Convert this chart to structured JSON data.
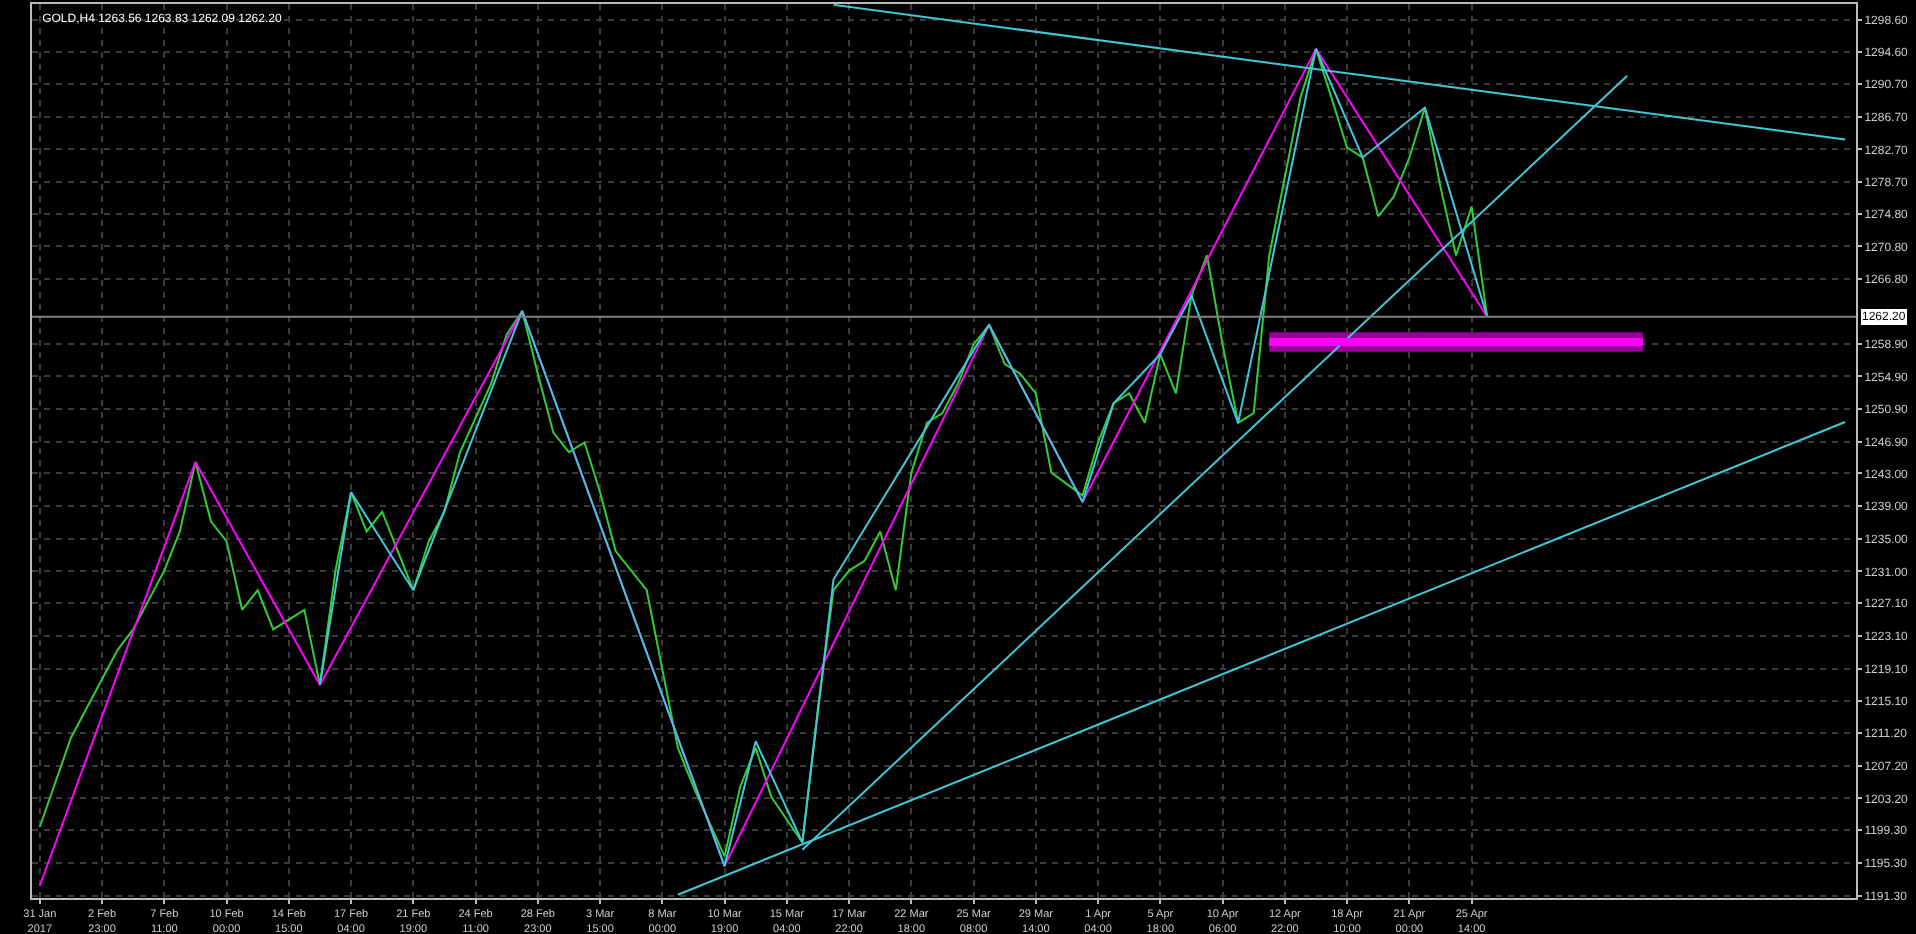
{
  "chart_data": {
    "type": "line",
    "title": "GOLD,H4 1263.56 1263.83 1262.09 1262.20",
    "categories": [
      "31 Jan 2017",
      null,
      null,
      null,
      "2 Feb 23:00",
      null,
      null,
      null,
      "7 Feb 11:00",
      null,
      null,
      null,
      "10 Feb 00:00",
      null,
      null,
      null,
      "14 Feb 15:00",
      null,
      null,
      null,
      "17 Feb 04:00",
      null,
      null,
      null,
      "21 Feb 19:00",
      null,
      null,
      null,
      "24 Feb 11:00",
      null,
      null,
      null,
      "28 Feb 23:00",
      null,
      null,
      null,
      "3 Mar 15:00",
      null,
      null,
      null,
      "8 Mar 00:00",
      null,
      null,
      null,
      "10 Mar 19:00",
      null,
      null,
      null,
      "15 Mar 04:00",
      null,
      null,
      null,
      "17 Mar 22:00",
      null,
      null,
      null,
      "22 Mar 18:00",
      null,
      null,
      null,
      "25 Mar 08:00",
      null,
      null,
      null,
      "29 Mar 14:00",
      null,
      null,
      null,
      "1 Apr 04:00",
      null,
      null,
      null,
      "5 Apr 18:00",
      null,
      null,
      null,
      "10 Apr 06:00",
      null,
      null,
      null,
      "12 Apr 22:00",
      null,
      null,
      null,
      "18 Apr 10:00",
      null,
      null,
      null,
      "21 Apr 00:00",
      null,
      null,
      null,
      "25 Apr 14:00",
      null,
      null,
      null,
      null,
      null,
      null,
      null,
      null,
      null,
      null,
      null,
      null,
      null,
      null,
      null,
      null,
      null,
      null,
      null,
      null,
      null,
      null,
      null,
      null
    ],
    "ylim": [
      1191.0,
      1300.5
    ],
    "yticks": [
      {
        "value": 1298.6,
        "label": "1298.60"
      },
      {
        "value": 1294.6,
        "label": "1294.60"
      },
      {
        "value": 1290.7,
        "label": "1290.70"
      },
      {
        "value": 1286.7,
        "label": "1286.70"
      },
      {
        "value": 1282.7,
        "label": "1282.70"
      },
      {
        "value": 1278.7,
        "label": "1278.70"
      },
      {
        "value": 1274.8,
        "label": "1274.80"
      },
      {
        "value": 1270.8,
        "label": "1270.80"
      },
      {
        "value": 1266.8,
        "label": "1266.80"
      },
      {
        "value": 1258.9,
        "label": "1258.90"
      },
      {
        "value": 1254.9,
        "label": "1254.90"
      },
      {
        "value": 1250.9,
        "label": "1250.90"
      },
      {
        "value": 1246.9,
        "label": "1246.90"
      },
      {
        "value": 1243.0,
        "label": "1243.00"
      },
      {
        "value": 1239.0,
        "label": "1239.00"
      },
      {
        "value": 1235.0,
        "label": "1235.00"
      },
      {
        "value": 1231.0,
        "label": "1231.00"
      },
      {
        "value": 1227.1,
        "label": "1227.10"
      },
      {
        "value": 1223.1,
        "label": "1223.10"
      },
      {
        "value": 1219.1,
        "label": "1219.10"
      },
      {
        "value": 1215.1,
        "label": "1215.10"
      },
      {
        "value": 1211.2,
        "label": "1211.20"
      },
      {
        "value": 1207.2,
        "label": "1207.20"
      },
      {
        "value": 1203.2,
        "label": "1203.20"
      },
      {
        "value": 1199.3,
        "label": "1199.30"
      },
      {
        "value": 1195.3,
        "label": "1195.30"
      },
      {
        "value": 1191.3,
        "label": "1191.30"
      }
    ],
    "grid": true,
    "marker": "none",
    "ref_lines": [
      {
        "axis": "y",
        "value": 1262.2,
        "label": "1262.20",
        "color": "#808080"
      }
    ],
    "series": [
      {
        "color": "#32cd32",
        "values": [
          1199.7,
          null,
          1210.6,
          1214.2,
          null,
          1221.4,
          1223.9,
          null,
          1231.1,
          1235.9,
          1244.4,
          1237.1,
          1234.7,
          1226.3,
          1228.7,
          1223.9,
          null,
          1226.3,
          1217.1,
          1231.1,
          1240.7,
          1235.9,
          1238.3,
          null,
          1228.7,
          1234.7,
          1238.3,
          1245.6,
          null,
          1254.0,
          1260.0,
          1262.9,
          1255.2,
          1248.0,
          1245.6,
          1246.8,
          1240.7,
          1233.5,
          null,
          1228.7,
          1219.0,
          1209.4,
          1204.6,
          null,
          1196.1,
          1204.6,
          1209.4,
          1203.4,
          null,
          1197.8,
          1214.2,
          1228.7,
          1231.1,
          1232.3,
          1235.9,
          1228.7,
          1243.1,
          1249.2,
          1250.4,
          1254.0,
          1258.8,
          1261.2,
          1256.4,
          1255.2,
          1252.8,
          1243.1,
          null,
          1240.3,
          1246.8,
          1251.6,
          1252.8,
          1249.2,
          1257.6,
          1252.8,
          1264.8,
          1269.7,
          1258.8,
          1249.2,
          1250.4,
          1269.7,
          1279.3,
          1289.0,
          1295.0,
          1289.0,
          1282.9,
          1281.7,
          1274.5,
          1276.9,
          1281.7,
          1287.8,
          1278.1,
          1269.7,
          1275.7,
          1262.2,
          null,
          null,
          null,
          null,
          null,
          null,
          null,
          null,
          null,
          null,
          null,
          null,
          null,
          null,
          null,
          null,
          null,
          null,
          null,
          null,
          null,
          null,
          null
        ]
      },
      {
        "color": "#ff00ff",
        "values": [
          1192.5,
          null,
          null,
          null,
          null,
          null,
          null,
          null,
          null,
          null,
          1244.4,
          null,
          null,
          null,
          null,
          null,
          null,
          null,
          1217.1,
          null,
          null,
          null,
          null,
          null,
          null,
          null,
          null,
          null,
          null,
          null,
          null,
          1262.9,
          null,
          null,
          null,
          null,
          null,
          null,
          null,
          null,
          null,
          null,
          null,
          null,
          1194.9,
          null,
          null,
          null,
          null,
          null,
          null,
          null,
          null,
          null,
          null,
          null,
          null,
          null,
          null,
          null,
          null,
          1261.2,
          null,
          null,
          null,
          null,
          null,
          1239.5,
          null,
          null,
          null,
          null,
          null,
          null,
          null,
          null,
          null,
          null,
          null,
          null,
          null,
          null,
          1295.0,
          null,
          null,
          null,
          null,
          null,
          null,
          null,
          null,
          null,
          null,
          1262.2,
          null,
          null,
          null,
          null,
          null,
          null,
          null,
          null,
          null,
          null,
          null,
          null,
          null,
          null,
          null,
          null,
          null,
          null,
          null,
          null,
          null,
          null,
          null
        ]
      },
      {
        "color": "#40c8d8",
        "values": [
          null,
          null,
          null,
          null,
          null,
          null,
          null,
          null,
          null,
          null,
          null,
          null,
          null,
          null,
          null,
          null,
          null,
          null,
          1217.1,
          null,
          1240.7,
          null,
          null,
          null,
          1228.7,
          null,
          null,
          null,
          null,
          null,
          null,
          1262.9,
          null,
          null,
          null,
          null,
          null,
          null,
          null,
          null,
          null,
          null,
          null,
          null,
          1194.9,
          null,
          1210.2,
          null,
          null,
          1197.8,
          null,
          1230.0,
          null,
          null,
          null,
          null,
          null,
          null,
          null,
          null,
          null,
          1261.2,
          null,
          null,
          null,
          null,
          null,
          1239.5,
          null,
          1251.6,
          null,
          null,
          1257.6,
          null,
          1264.8,
          null,
          null,
          1249.2,
          null,
          null,
          null,
          null,
          1295.0,
          null,
          null,
          1281.7,
          null,
          null,
          null,
          1287.8,
          null,
          null,
          null,
          1262.2,
          null,
          null,
          null,
          null,
          null,
          null,
          null,
          null,
          null,
          null,
          null,
          null,
          null,
          null,
          null,
          null,
          null,
          null,
          null,
          null,
          null,
          null,
          null
        ]
      },
      {
        "color": "#40c8d8",
        "values": [
          null,
          null,
          null,
          null,
          null,
          null,
          null,
          null,
          null,
          null,
          null,
          null,
          null,
          null,
          null,
          null,
          null,
          null,
          null,
          null,
          null,
          null,
          null,
          null,
          null,
          null,
          null,
          null,
          null,
          null,
          null,
          null,
          null,
          null,
          null,
          null,
          null,
          null,
          null,
          null,
          null,
          null,
          null,
          null,
          null,
          null,
          null,
          null,
          null,
          null,
          null,
          1300.4,
          null,
          null,
          null,
          null,
          null,
          null,
          null,
          null,
          null,
          null,
          null,
          null,
          null,
          null,
          null,
          null,
          null,
          null,
          null,
          null,
          null,
          null,
          null,
          null,
          null,
          null,
          null,
          null,
          null,
          null,
          null,
          null,
          null,
          null,
          null,
          null,
          null,
          null,
          null,
          null,
          null,
          null,
          null,
          null,
          null,
          null,
          null,
          null,
          null,
          null,
          null,
          null,
          null,
          null,
          null,
          null,
          null,
          null,
          null,
          null,
          null,
          null,
          null,
          null,
          1283.9
        ]
      },
      {
        "color": "#40c8d8",
        "values": [
          null,
          null,
          null,
          null,
          null,
          null,
          null,
          null,
          null,
          null,
          null,
          null,
          null,
          null,
          null,
          null,
          null,
          null,
          null,
          null,
          null,
          null,
          null,
          null,
          null,
          null,
          null,
          null,
          null,
          null,
          null,
          null,
          null,
          null,
          null,
          null,
          null,
          null,
          null,
          null,
          null,
          null,
          null,
          null,
          null,
          null,
          null,
          null,
          null,
          1196.9,
          null,
          null,
          null,
          null,
          null,
          null,
          null,
          null,
          null,
          null,
          null,
          null,
          null,
          null,
          null,
          null,
          null,
          null,
          null,
          null,
          null,
          null,
          null,
          null,
          null,
          null,
          null,
          null,
          null,
          null,
          null,
          null,
          null,
          null,
          null,
          null,
          null,
          null,
          null,
          null,
          null,
          null,
          null,
          null,
          null,
          null,
          null,
          null,
          null,
          null,
          null,
          null,
          1291.7,
          null,
          null,
          null,
          null,
          null,
          null,
          null,
          null,
          null,
          null,
          null,
          null,
          null,
          null
        ]
      },
      {
        "color": "#40c8d8",
        "values": [
          null,
          null,
          null,
          null,
          null,
          null,
          null,
          null,
          null,
          null,
          null,
          null,
          null,
          null,
          null,
          null,
          null,
          null,
          null,
          null,
          null,
          null,
          null,
          null,
          null,
          null,
          null,
          null,
          null,
          null,
          null,
          null,
          null,
          null,
          null,
          null,
          null,
          null,
          null,
          null,
          null,
          1191.4,
          null,
          null,
          null,
          null,
          null,
          null,
          null,
          null,
          null,
          null,
          null,
          null,
          null,
          null,
          null,
          null,
          null,
          null,
          null,
          null,
          null,
          null,
          null,
          null,
          null,
          null,
          null,
          null,
          null,
          null,
          null,
          null,
          null,
          null,
          null,
          null,
          null,
          null,
          null,
          null,
          null,
          null,
          null,
          null,
          null,
          null,
          null,
          null,
          null,
          null,
          null,
          null,
          null,
          null,
          null,
          null,
          null,
          null,
          null,
          null,
          null,
          null,
          null,
          null,
          null,
          null,
          null,
          null,
          null,
          null,
          null,
          null,
          null,
          null,
          1249.3
        ]
      },
      {
        "color": "#ff00ff",
        "values": [
          null,
          null,
          null,
          null,
          null,
          null,
          null,
          null,
          null,
          null,
          null,
          null,
          null,
          null,
          null,
          null,
          null,
          null,
          null,
          null,
          null,
          null,
          null,
          null,
          null,
          null,
          null,
          null,
          null,
          null,
          null,
          null,
          null,
          null,
          null,
          null,
          null,
          null,
          null,
          null,
          null,
          null,
          null,
          null,
          null,
          null,
          null,
          null,
          null,
          null,
          null,
          null,
          null,
          null,
          null,
          null,
          null,
          null,
          null,
          null,
          null,
          null,
          null,
          null,
          null,
          null,
          null,
          null,
          null,
          null,
          null,
          null,
          null,
          null,
          null,
          null,
          null,
          null,
          null,
          1259.1,
          null,
          null,
          null,
          null,
          null,
          null,
          null,
          null,
          null,
          null,
          null,
          null,
          null,
          null,
          null,
          null,
          null,
          null,
          null,
          null,
          null,
          null,
          null,
          1259.1,
          null,
          null,
          null,
          null,
          null,
          null,
          null,
          null,
          null,
          null,
          null,
          null,
          null
        ],
        "lower": [
          null,
          null,
          null,
          null,
          null,
          null,
          null,
          null,
          null,
          null,
          null,
          null,
          null,
          null,
          null,
          null,
          null,
          null,
          null,
          null,
          null,
          null,
          null,
          null,
          null,
          null,
          null,
          null,
          null,
          null,
          null,
          null,
          null,
          null,
          null,
          null,
          null,
          null,
          null,
          null,
          null,
          null,
          null,
          null,
          null,
          null,
          null,
          null,
          null,
          null,
          null,
          null,
          null,
          null,
          null,
          null,
          null,
          null,
          null,
          null,
          null,
          null,
          null,
          null,
          null,
          null,
          null,
          null,
          null,
          null,
          null,
          null,
          null,
          null,
          null,
          null,
          null,
          null,
          null,
          1257.9,
          null,
          null,
          null,
          null,
          null,
          null,
          null,
          null,
          null,
          null,
          null,
          null,
          null,
          null,
          null,
          null,
          null,
          null,
          null,
          null,
          null,
          null,
          null,
          1257.9,
          null,
          null,
          null,
          null,
          null,
          null,
          null,
          null,
          null,
          null,
          null,
          null,
          null
        ],
        "upper": [
          null,
          null,
          null,
          null,
          null,
          null,
          null,
          null,
          null,
          null,
          null,
          null,
          null,
          null,
          null,
          null,
          null,
          null,
          null,
          null,
          null,
          null,
          null,
          null,
          null,
          null,
          null,
          null,
          null,
          null,
          null,
          null,
          null,
          null,
          null,
          null,
          null,
          null,
          null,
          null,
          null,
          null,
          null,
          null,
          null,
          null,
          null,
          null,
          null,
          null,
          null,
          null,
          null,
          null,
          null,
          null,
          null,
          null,
          null,
          null,
          null,
          null,
          null,
          null,
          null,
          null,
          null,
          null,
          null,
          null,
          null,
          null,
          null,
          null,
          null,
          null,
          null,
          null,
          null,
          1260.3,
          null,
          null,
          null,
          null,
          null,
          null,
          null,
          null,
          null,
          null,
          null,
          null,
          null,
          null,
          null,
          null,
          null,
          null,
          null,
          null,
          null,
          null,
          null,
          1260.3,
          null,
          null,
          null,
          null,
          null,
          null,
          null,
          null,
          null,
          null,
          null,
          null,
          null
        ]
      }
    ]
  }
}
